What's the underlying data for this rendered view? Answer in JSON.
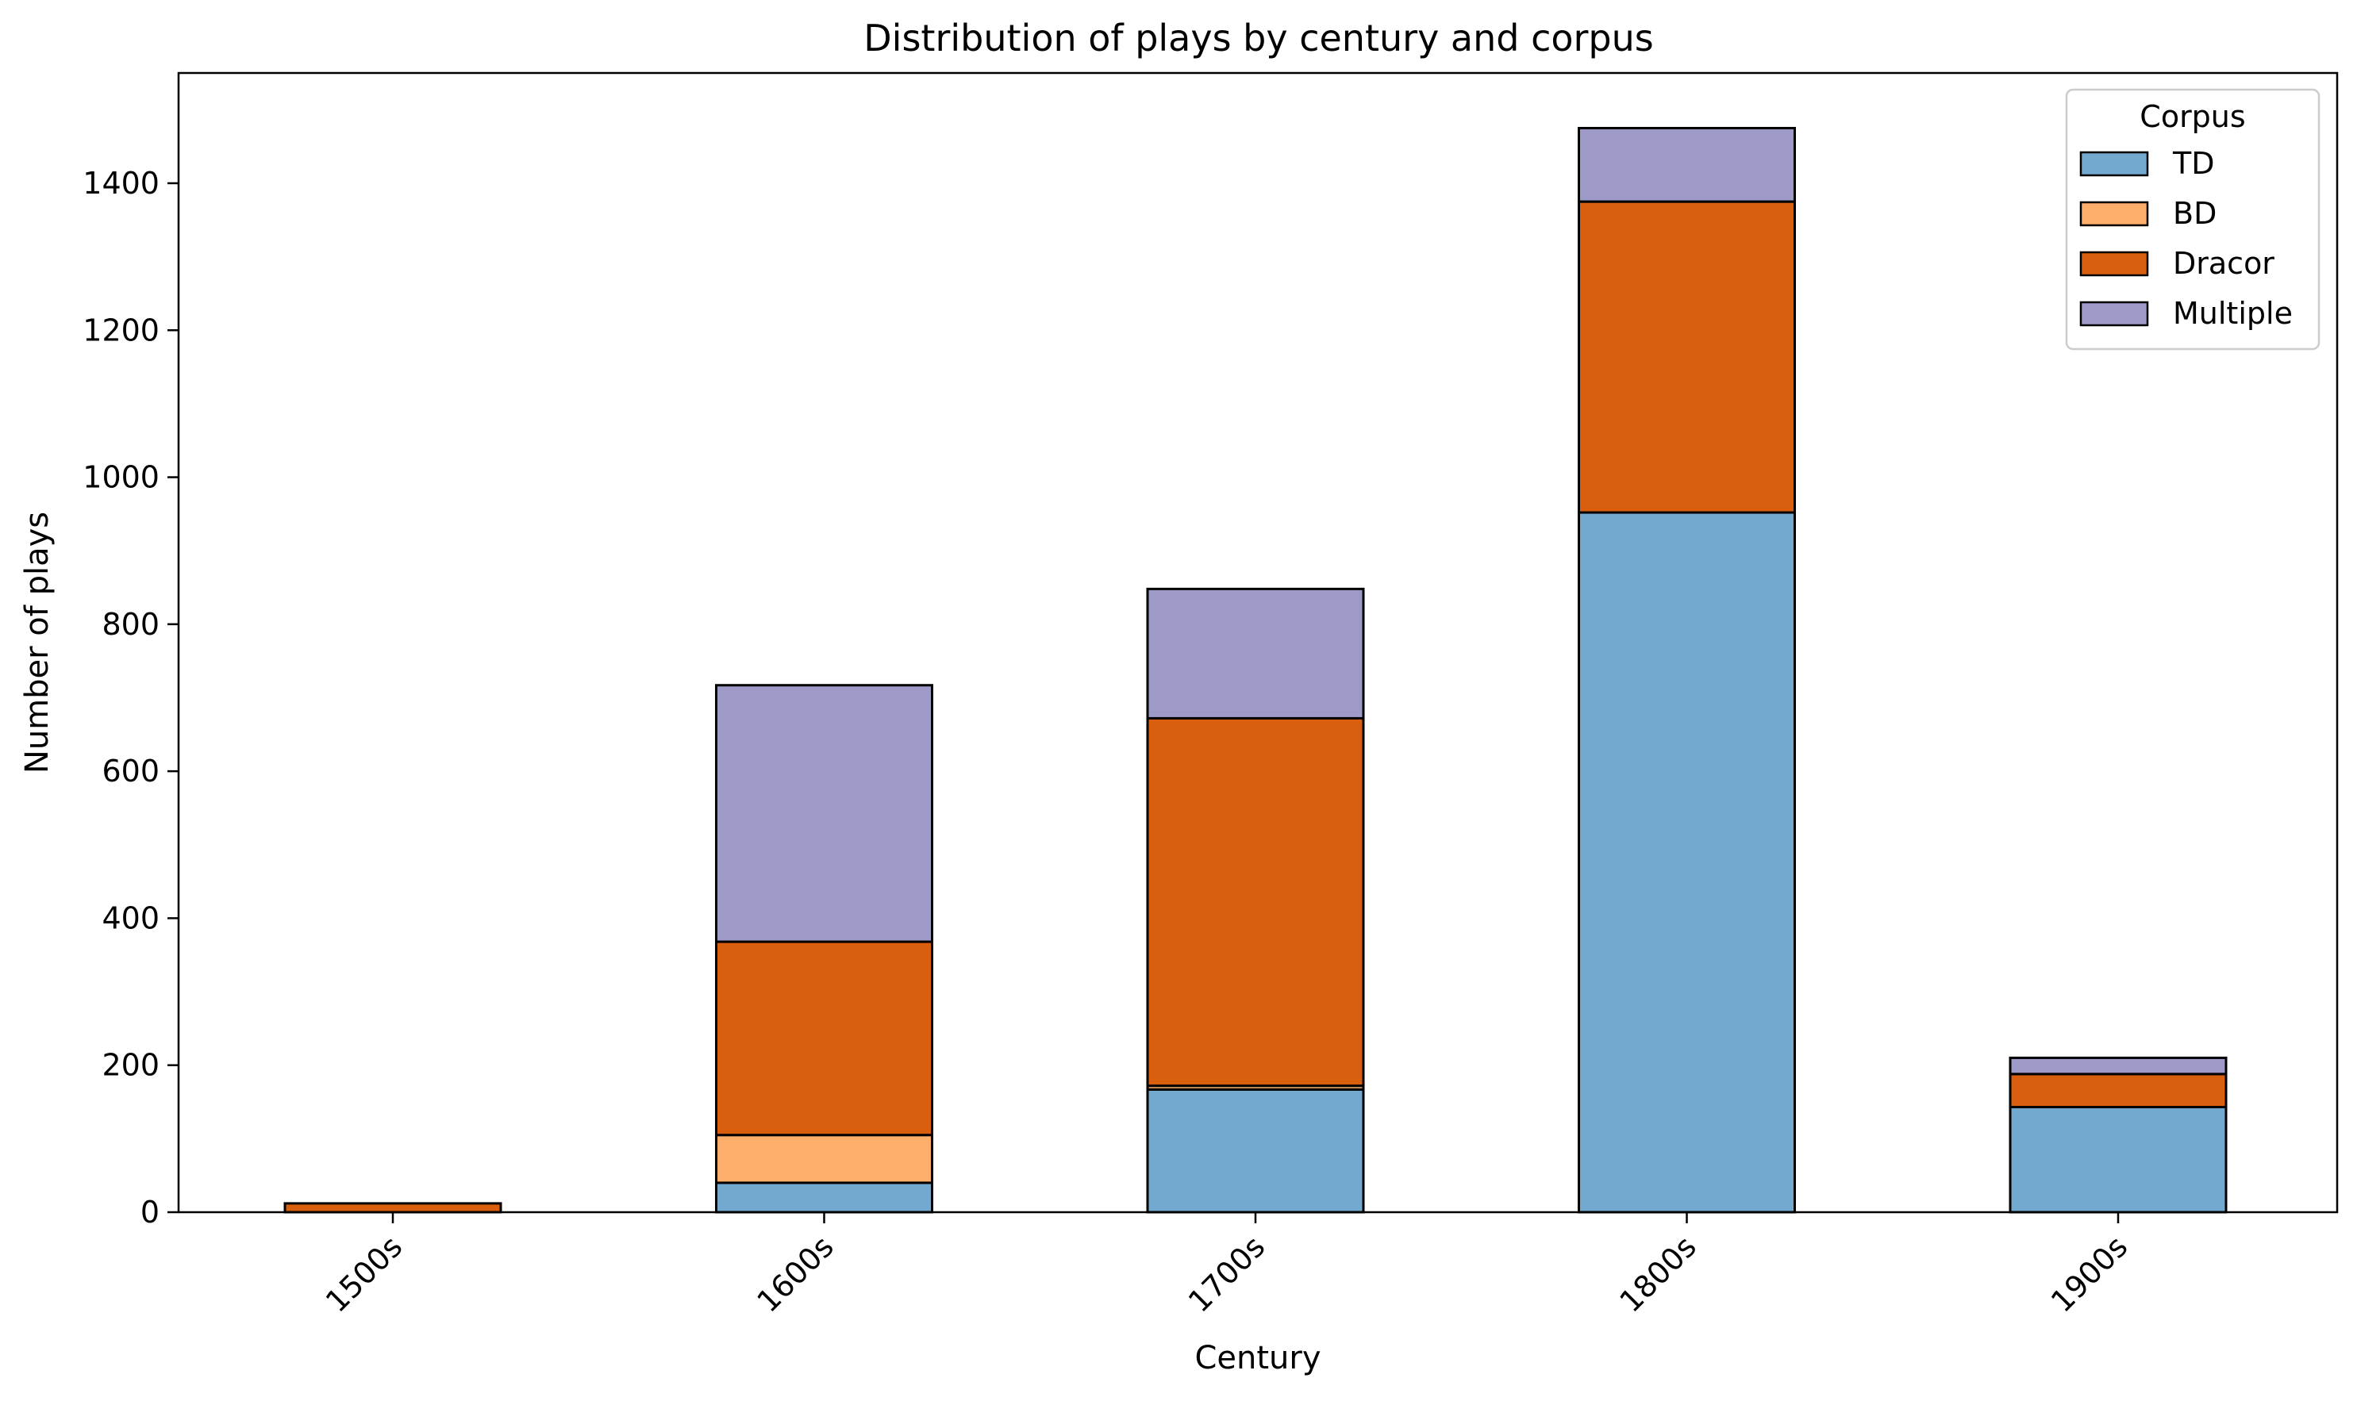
{
  "chart_data": {
    "type": "bar",
    "stacked": true,
    "title": "Distribution of plays by century and corpus",
    "xlabel": "Century",
    "ylabel": "Number of plays",
    "categories": [
      "1500s",
      "1600s",
      "1700s",
      "1800s",
      "1900s"
    ],
    "yticks": [
      0,
      200,
      400,
      600,
      800,
      1000,
      1200,
      1400
    ],
    "ylim": [
      0,
      1550
    ],
    "grid": false,
    "legend": {
      "title": "Corpus",
      "placement": "top-right"
    },
    "series": [
      {
        "name": "TD",
        "color": "#74a9cf",
        "values": [
          0,
          40,
          167,
          952,
          143
        ]
      },
      {
        "name": "BD",
        "color": "#fdae6b",
        "values": [
          0,
          65,
          5,
          0,
          0
        ]
      },
      {
        "name": "Dracor",
        "color": "#d95f0e",
        "values": [
          12,
          263,
          500,
          423,
          45
        ]
      },
      {
        "name": "Multiple",
        "color": "#9e9ac8",
        "values": [
          0,
          349,
          176,
          100,
          22
        ]
      }
    ]
  }
}
